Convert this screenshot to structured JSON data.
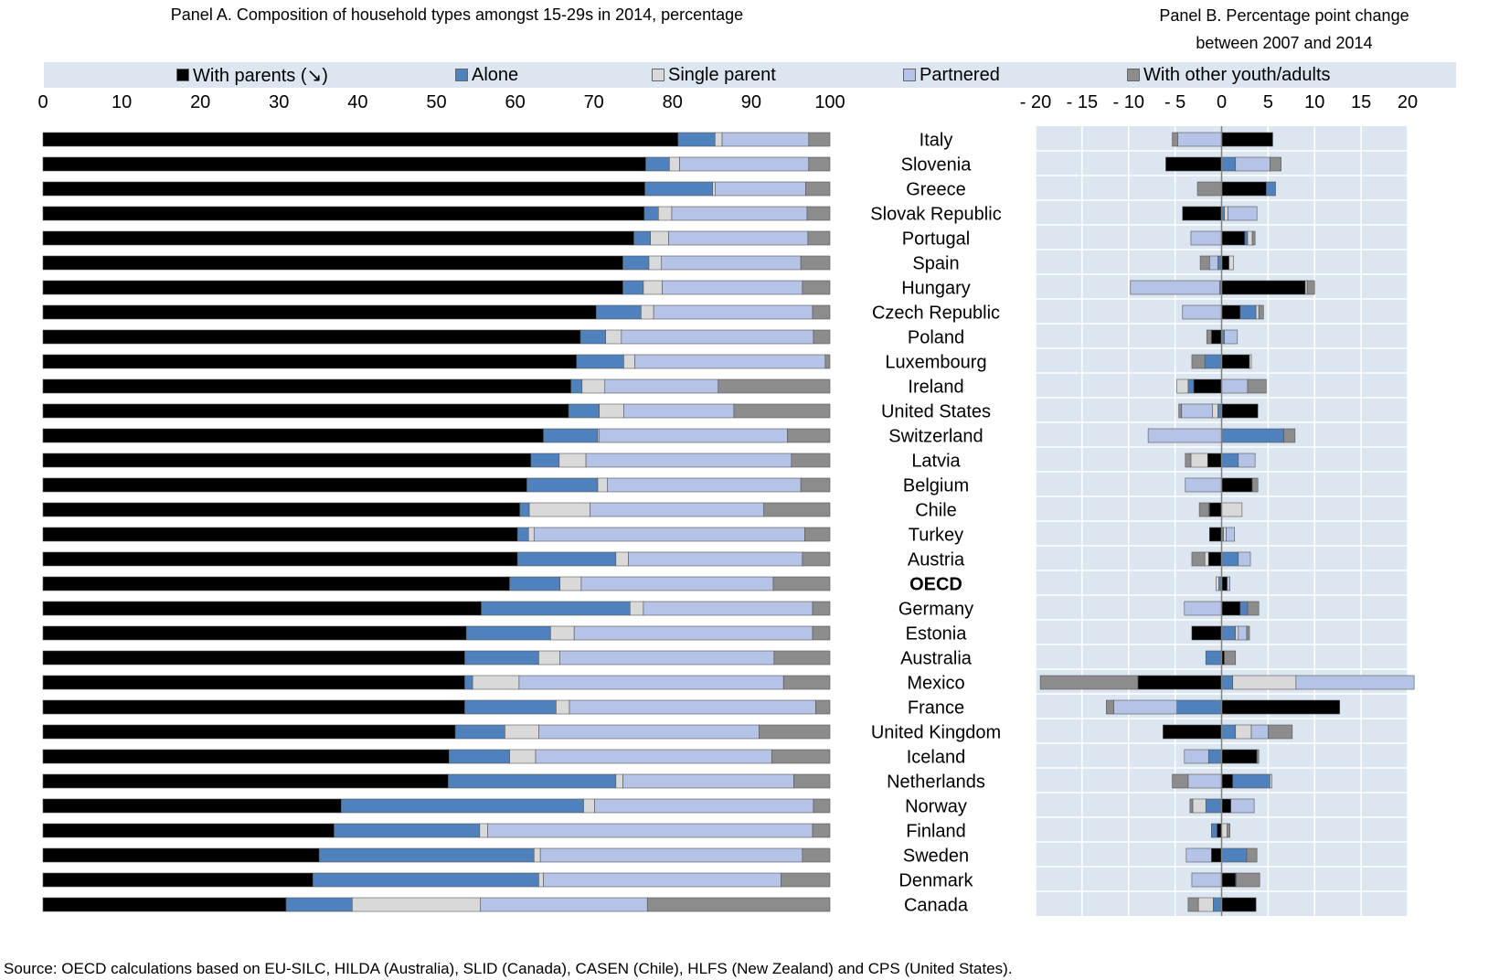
{
  "panel_a_title": "Panel A. Composition of household types amongst 15-29s in 2014, percentage",
  "panel_b_title_line1": "Panel B. Percentage point change",
  "panel_b_title_line2": "between 2007 and 2014",
  "source": "Source: OECD calculations based on EU-SILC, HILDA (Australia), SLID (Canada), CASEN (Chile), HLFS (New Zealand) and CPS (United States).",
  "legend": [
    {
      "label": "With parents (↘)",
      "color": "#000000"
    },
    {
      "label": "Alone",
      "color": "#4f81bd"
    },
    {
      "label": "Single parent",
      "color": "#d9d9d9"
    },
    {
      "label": "Partnered",
      "color": "#b4c3e6"
    },
    {
      "label": "With other youth/adults",
      "color": "#8c8c8c"
    }
  ],
  "chart_data": [
    {
      "type": "bar",
      "orientation": "horizontal",
      "stacked": true,
      "title": "Panel A. Composition of household types amongst 15-29s in 2014, percentage",
      "xlim": [
        0,
        100
      ],
      "xticks": [
        0,
        10,
        20,
        30,
        40,
        50,
        60,
        70,
        80,
        90,
        100
      ],
      "categories": [
        "Italy",
        "Slovenia",
        "Greece",
        "Slovak Republic",
        "Portugal",
        "Spain",
        "Hungary",
        "Czech Republic",
        "Poland",
        "Luxembourg",
        "Ireland",
        "United States",
        "Switzerland",
        "Latvia",
        "Belgium",
        "Chile",
        "Turkey",
        "Austria",
        "OECD",
        "Germany",
        "Estonia",
        "Australia",
        "Mexico",
        "France",
        "United Kingdom",
        "Iceland",
        "Netherlands",
        "Norway",
        "Finland",
        "Sweden",
        "Denmark",
        "Canada"
      ],
      "series": [
        {
          "name": "With parents (↘)",
          "color": "#000000",
          "values": [
            80.7,
            76.6,
            76.5,
            76.4,
            75.1,
            73.7,
            73.7,
            70.3,
            68.3,
            67.8,
            67.1,
            66.8,
            63.6,
            62.0,
            61.5,
            60.6,
            60.3,
            60.3,
            59.3,
            55.7,
            53.8,
            53.6,
            53.6,
            53.6,
            52.4,
            51.6,
            51.5,
            37.9,
            37.0,
            35.1,
            34.3,
            30.9
          ]
        },
        {
          "name": "Alone",
          "color": "#4f81bd",
          "values": [
            4.7,
            3.0,
            8.6,
            1.8,
            2.1,
            3.3,
            2.6,
            5.7,
            3.2,
            6.0,
            1.4,
            3.9,
            6.9,
            3.6,
            9.0,
            1.2,
            1.4,
            12.5,
            6.4,
            18.9,
            10.7,
            9.4,
            1.0,
            11.6,
            6.3,
            7.7,
            21.3,
            30.8,
            18.5,
            27.3,
            28.7,
            8.4
          ]
        },
        {
          "name": "Single parent",
          "color": "#d9d9d9",
          "values": [
            0.9,
            1.3,
            0.3,
            1.7,
            2.3,
            1.6,
            2.4,
            1.6,
            2.0,
            1.4,
            2.9,
            3.1,
            0.2,
            3.4,
            1.2,
            7.7,
            0.7,
            1.6,
            2.7,
            1.7,
            3.0,
            2.7,
            5.9,
            1.7,
            4.3,
            3.3,
            0.9,
            1.4,
            1.0,
            0.8,
            0.6,
            16.3
          ]
        },
        {
          "name": "Partnered",
          "color": "#b4c3e6",
          "values": [
            11.0,
            16.4,
            11.5,
            17.2,
            17.7,
            17.7,
            17.8,
            20.2,
            24.4,
            24.2,
            14.4,
            14.0,
            23.9,
            26.1,
            24.6,
            22.1,
            34.4,
            22.1,
            24.4,
            21.5,
            30.3,
            27.2,
            33.6,
            31.3,
            28.0,
            30.0,
            21.7,
            27.8,
            41.3,
            33.3,
            30.2,
            21.2
          ]
        },
        {
          "name": "With other youth/adults",
          "color": "#8c8c8c",
          "values": [
            2.7,
            2.7,
            3.1,
            2.9,
            2.8,
            3.7,
            3.5,
            2.2,
            2.1,
            0.6,
            14.2,
            12.2,
            5.4,
            4.9,
            3.7,
            8.4,
            3.2,
            3.5,
            7.2,
            2.2,
            2.2,
            7.1,
            5.9,
            1.8,
            9.0,
            7.4,
            4.6,
            2.1,
            2.2,
            3.5,
            6.2,
            23.2
          ]
        }
      ]
    },
    {
      "type": "bar",
      "orientation": "horizontal",
      "stacked": true,
      "diverging": true,
      "title": "Panel B. Percentage point change between 2007 and 2014",
      "xlim": [
        -20,
        20
      ],
      "xticks": [
        -20,
        -15,
        -10,
        -5,
        0,
        5,
        10,
        15,
        20
      ],
      "xtick_labels": [
        "- 20",
        "- 15",
        "- 10",
        "- 5",
        "0",
        "5",
        "10",
        "15",
        "20"
      ],
      "categories": [
        "Italy",
        "Slovenia",
        "Greece",
        "Slovak Republic",
        "Portugal",
        "Spain",
        "Hungary",
        "Czech Republic",
        "Poland",
        "Luxembourg",
        "Ireland",
        "United States",
        "Switzerland",
        "Latvia",
        "Belgium",
        "Chile",
        "Turkey",
        "Austria",
        "OECD",
        "Germany",
        "Estonia",
        "Australia",
        "Mexico",
        "France",
        "United Kingdom",
        "Iceland",
        "Netherlands",
        "Norway",
        "Finland",
        "Sweden",
        "Denmark",
        "Canada"
      ],
      "series": [
        {
          "name": "With parents (↘)",
          "color": "#000000",
          "values": [
            5.5,
            -6.0,
            4.8,
            -4.2,
            2.5,
            0.8,
            9.0,
            2.0,
            -1.1,
            3.0,
            -3.0,
            3.9,
            0.0,
            -1.5,
            3.3,
            -1.3,
            -1.3,
            -1.4,
            0.6,
            2.0,
            -3.2,
            0.3,
            -9.0,
            12.7,
            -6.3,
            3.8,
            1.2,
            1.0,
            -0.5,
            -1.1,
            1.5,
            3.7
          ]
        },
        {
          "name": "Alone",
          "color": "#4f81bd",
          "values": [
            0.0,
            1.5,
            1.0,
            0.3,
            0.3,
            -0.4,
            -0.2,
            1.7,
            0.3,
            -1.8,
            -0.6,
            -0.4,
            6.7,
            1.8,
            0.0,
            -0.1,
            0.2,
            1.8,
            -0.3,
            0.8,
            1.5,
            -1.7,
            1.2,
            -4.8,
            1.5,
            -1.4,
            4.0,
            -1.7,
            -0.6,
            2.7,
            0.1,
            -0.9
          ]
        },
        {
          "name": "Single parent",
          "color": "#d9d9d9",
          "values": [
            0.0,
            0.0,
            0.0,
            0.4,
            0.5,
            0.5,
            0.2,
            0.3,
            0.0,
            0.2,
            -1.2,
            -0.6,
            0.0,
            -1.8,
            0.0,
            2.2,
            0.3,
            -0.4,
            -0.3,
            0.0,
            0.3,
            0.0,
            6.8,
            0.0,
            1.7,
            0.0,
            0.2,
            -1.4,
            0.6,
            0.0,
            0.0,
            -1.6
          ]
        },
        {
          "name": "Partnered",
          "color": "#b4c3e6",
          "values": [
            -4.7,
            3.7,
            0.0,
            3.1,
            -3.3,
            -0.9,
            -9.6,
            -4.2,
            1.4,
            0.0,
            2.8,
            -3.3,
            -7.9,
            1.8,
            -3.9,
            0.0,
            0.9,
            1.3,
            0.3,
            -4.0,
            0.9,
            0.0,
            12.7,
            -6.8,
            1.8,
            -2.6,
            -3.6,
            2.5,
            0.0,
            -2.7,
            -3.2,
            0.0
          ]
        },
        {
          "name": "With other youth/adults",
          "color": "#8c8c8c",
          "values": [
            -0.6,
            1.2,
            -2.6,
            0.0,
            0.3,
            -1.0,
            0.8,
            0.5,
            -0.5,
            -1.4,
            2.0,
            -0.3,
            1.2,
            -0.6,
            0.6,
            -1.0,
            0.0,
            -1.4,
            0.0,
            1.2,
            0.3,
            1.2,
            -10.5,
            -0.8,
            2.6,
            0.2,
            -1.7,
            -0.3,
            0.3,
            1.1,
            2.5,
            -1.1
          ]
        }
      ]
    }
  ]
}
